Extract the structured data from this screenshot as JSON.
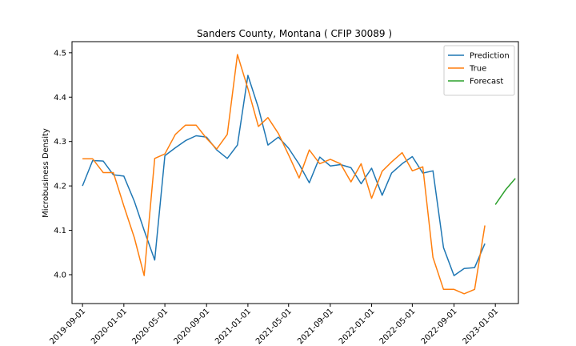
{
  "chart_data": {
    "type": "line",
    "title": "Sanders County, Montana ( CFIP 30089 )",
    "xlabel": "",
    "ylabel": "Microbusiness Density",
    "xlim": [
      "2019-08-01",
      "2023-03-10"
    ],
    "ylim": [
      3.935,
      4.525
    ],
    "x_ticks": [
      "2019-09-01",
      "2020-01-01",
      "2020-05-01",
      "2020-09-01",
      "2021-01-01",
      "2021-05-01",
      "2021-09-01",
      "2022-01-01",
      "2022-05-01",
      "2022-09-01",
      "2023-01-01"
    ],
    "y_ticks": [
      4.0,
      4.1,
      4.2,
      4.3,
      4.4,
      4.5
    ],
    "y_tick_labels": [
      "4.0",
      "4.1",
      "4.2",
      "4.3",
      "4.4",
      "4.5"
    ],
    "grid": false,
    "legend_position": "top-right",
    "series": [
      {
        "name": "Prediction",
        "color": "#1f77b4",
        "x": [
          "2019-09-01",
          "2019-10-01",
          "2019-11-01",
          "2019-12-01",
          "2020-01-01",
          "2020-02-01",
          "2020-03-01",
          "2020-04-01",
          "2020-05-01",
          "2020-06-01",
          "2020-07-01",
          "2020-08-01",
          "2020-09-01",
          "2020-10-01",
          "2020-11-01",
          "2020-12-01",
          "2021-01-01",
          "2021-02-01",
          "2021-03-01",
          "2021-04-01",
          "2021-05-01",
          "2021-06-01",
          "2021-07-01",
          "2021-08-01",
          "2021-09-01",
          "2021-10-01",
          "2021-11-01",
          "2021-12-01",
          "2022-01-01",
          "2022-02-01",
          "2022-03-01",
          "2022-04-01",
          "2022-05-01",
          "2022-06-01",
          "2022-07-01",
          "2022-08-01",
          "2022-09-01",
          "2022-10-01",
          "2022-11-01",
          "2022-12-01"
        ],
        "values": [
          4.2,
          4.257,
          4.256,
          4.225,
          4.222,
          4.165,
          4.1,
          4.033,
          4.268,
          4.286,
          4.302,
          4.313,
          4.31,
          4.281,
          4.262,
          4.292,
          4.449,
          4.376,
          4.292,
          4.31,
          4.285,
          4.249,
          4.207,
          4.265,
          4.245,
          4.248,
          4.241,
          4.205,
          4.24,
          4.179,
          4.229,
          4.25,
          4.266,
          4.229,
          4.234,
          4.061,
          3.998,
          4.014,
          4.016,
          4.07
        ]
      },
      {
        "name": "True",
        "color": "#ff7f0e",
        "x": [
          "2019-09-01",
          "2019-10-01",
          "2019-11-01",
          "2019-12-01",
          "2020-01-01",
          "2020-02-01",
          "2020-03-01",
          "2020-04-01",
          "2020-05-01",
          "2020-06-01",
          "2020-07-01",
          "2020-08-01",
          "2020-09-01",
          "2020-10-01",
          "2020-11-01",
          "2020-12-01",
          "2021-01-01",
          "2021-02-01",
          "2021-03-01",
          "2021-04-01",
          "2021-05-01",
          "2021-06-01",
          "2021-07-01",
          "2021-08-01",
          "2021-09-01",
          "2021-10-01",
          "2021-11-01",
          "2021-12-01",
          "2022-01-01",
          "2022-02-01",
          "2022-03-01",
          "2022-04-01",
          "2022-05-01",
          "2022-06-01",
          "2022-07-01",
          "2022-08-01",
          "2022-09-01",
          "2022-10-01",
          "2022-11-01",
          "2022-12-01"
        ],
        "values": [
          4.261,
          4.261,
          4.23,
          4.23,
          4.155,
          4.083,
          3.998,
          4.262,
          4.272,
          4.316,
          4.337,
          4.337,
          4.307,
          4.283,
          4.316,
          4.496,
          4.419,
          4.334,
          4.354,
          4.318,
          4.27,
          4.218,
          4.281,
          4.25,
          4.26,
          4.25,
          4.209,
          4.25,
          4.172,
          4.233,
          4.254,
          4.275,
          4.234,
          4.243,
          4.039,
          3.967,
          3.967,
          3.957,
          3.967,
          4.111
        ]
      },
      {
        "name": "Forecast",
        "color": "#2ca02c",
        "x": [
          "2023-01-01",
          "2023-02-01",
          "2023-03-01"
        ],
        "values": [
          4.158,
          4.192,
          4.217
        ]
      }
    ]
  }
}
